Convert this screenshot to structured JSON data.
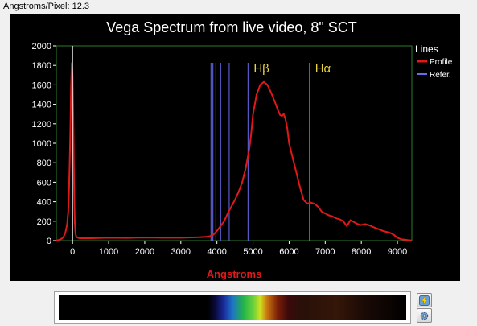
{
  "status": {
    "label": "Angstroms/Pixel: 12.3"
  },
  "chart_data": {
    "type": "line",
    "title": "Vega Spectrum from live video, 8\" SCT",
    "xlabel": "Angstroms",
    "ylabel": "",
    "xlim": [
      -450,
      9400
    ],
    "ylim": [
      0,
      2000
    ],
    "xticks": [
      0,
      1000,
      2000,
      3000,
      4000,
      5000,
      6000,
      7000,
      8000,
      9000
    ],
    "yticks": [
      0,
      200,
      400,
      600,
      800,
      1000,
      1200,
      1400,
      1600,
      1800,
      2000
    ],
    "grid": false,
    "legend": {
      "title": "Lines",
      "position": "right"
    },
    "series": [
      {
        "name": "Profile",
        "color": "#e01818",
        "x": [
          -450,
          -400,
          -300,
          -250,
          -200,
          -150,
          -120,
          -100,
          -80,
          -60,
          -40,
          -20,
          0,
          20,
          40,
          60,
          80,
          100,
          150,
          200,
          300,
          500,
          800,
          1000,
          1500,
          1700,
          2000,
          2500,
          3000,
          3500,
          3700,
          3800,
          3900,
          4000,
          4100,
          4200,
          4300,
          4400,
          4500,
          4600,
          4700,
          4800,
          4900,
          4950,
          5000,
          5100,
          5200,
          5300,
          5400,
          5500,
          5600,
          5700,
          5750,
          5800,
          5850,
          5900,
          5950,
          6000,
          6100,
          6200,
          6300,
          6400,
          6500,
          6600,
          6700,
          6800,
          6900,
          7000,
          7100,
          7200,
          7300,
          7400,
          7500,
          7600,
          7650,
          7700,
          7800,
          7900,
          8000,
          8100,
          8200,
          8300,
          8400,
          8500,
          8600,
          8700,
          8800,
          8900,
          9000,
          9100,
          9200,
          9300,
          9400
        ],
        "values": [
          0,
          5,
          20,
          40,
          80,
          170,
          300,
          500,
          800,
          1150,
          1600,
          1830,
          1700,
          1250,
          600,
          200,
          80,
          40,
          30,
          25,
          25,
          25,
          28,
          30,
          28,
          30,
          32,
          30,
          30,
          35,
          40,
          45,
          60,
          100,
          150,
          200,
          280,
          350,
          420,
          500,
          600,
          750,
          950,
          1100,
          1300,
          1500,
          1600,
          1630,
          1600,
          1520,
          1430,
          1330,
          1290,
          1280,
          1300,
          1250,
          1150,
          1000,
          850,
          700,
          550,
          420,
          380,
          390,
          380,
          350,
          300,
          280,
          260,
          250,
          230,
          220,
          200,
          150,
          180,
          210,
          190,
          170,
          160,
          170,
          160,
          145,
          130,
          115,
          100,
          90,
          80,
          60,
          30,
          15,
          10,
          5,
          2
        ]
      }
    ],
    "reference_lines": {
      "name": "Refer.",
      "color": "#6a6af0",
      "x": [
        3835,
        3889,
        3970,
        4102,
        4340,
        4861,
        6563
      ]
    },
    "annotations": [
      {
        "text": "Hβ",
        "x": 4861
      },
      {
        "text": "Hα",
        "x": 6563
      }
    ]
  },
  "buttons": {
    "flash_icon": "lightning-icon",
    "settings_icon": "gear-icon"
  }
}
